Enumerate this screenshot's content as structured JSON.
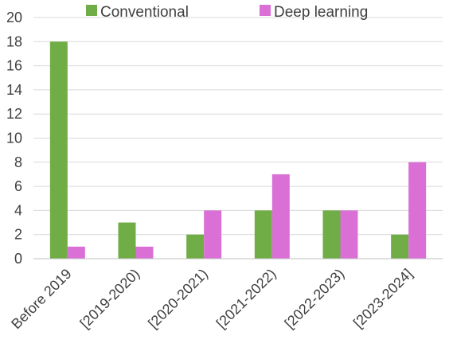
{
  "chart_data": {
    "type": "bar",
    "title": "",
    "xlabel": "",
    "ylabel": "",
    "categories": [
      "Before 2019",
      "[2019-2020)",
      "[2020-2021)",
      "[2021-2022)",
      "[2022-2023)",
      "[2023-2024]"
    ],
    "series": [
      {
        "name": "Conventional",
        "values": [
          18,
          3,
          2,
          4,
          4,
          2
        ],
        "color": "#70ad47"
      },
      {
        "name": "Deep learning",
        "values": [
          1,
          1,
          4,
          7,
          4,
          8
        ],
        "color": "#da70d6"
      }
    ],
    "ylim": [
      0,
      20
    ],
    "yticks": [
      "0",
      "2",
      "4",
      "6",
      "8",
      "10",
      "12",
      "14",
      "16",
      "18",
      "20"
    ],
    "grid": true,
    "legend_position": "top"
  }
}
